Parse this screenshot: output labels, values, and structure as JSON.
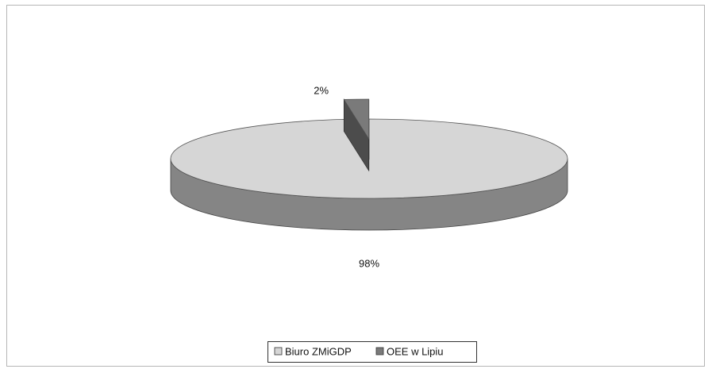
{
  "chart_data": {
    "type": "pie",
    "categories": [
      "Biuro ZMiGDP",
      "OEE w Lipiu"
    ],
    "values": [
      98,
      2
    ],
    "value_labels": [
      "98%",
      "2%"
    ],
    "colors": [
      "#d6d6d6",
      "#7a7a7a"
    ],
    "legend": "bottom"
  }
}
